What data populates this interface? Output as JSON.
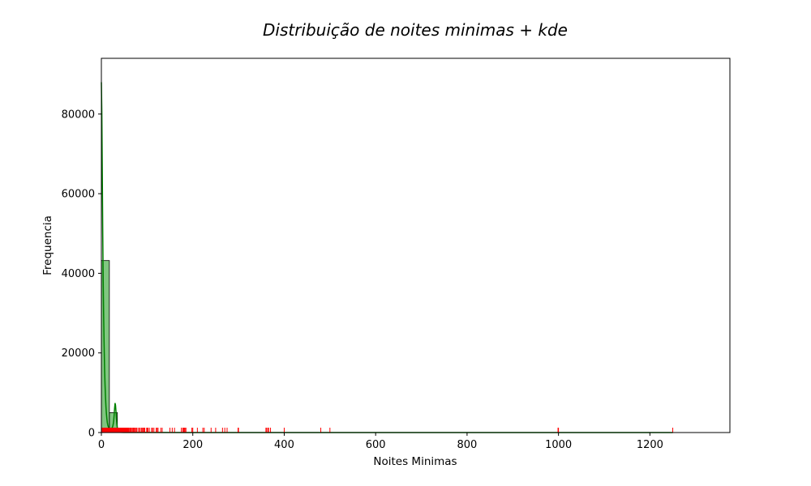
{
  "chart_data": {
    "type": "bar",
    "title": "Distribuição de noites minimas + kde",
    "xlabel": "Noites Minimas",
    "ylabel": "Frequencia",
    "xlim": [
      0,
      1375
    ],
    "ylim": [
      0,
      94000
    ],
    "xticks": [
      0,
      200,
      400,
      600,
      800,
      1000,
      1200
    ],
    "yticks": [
      0,
      20000,
      40000,
      60000,
      80000
    ],
    "histogram": {
      "bin_width": 17.5,
      "bins": [
        {
          "x0": 0,
          "x1": 17.5,
          "count": 43200
        },
        {
          "x0": 17.5,
          "x1": 35,
          "count": 5000
        },
        {
          "x0": 35,
          "x1": 52.5,
          "count": 150
        },
        {
          "x0": 52.5,
          "x1": 70,
          "count": 60
        },
        {
          "x0": 70,
          "x1": 87.5,
          "count": 40
        },
        {
          "x0": 87.5,
          "x1": 105,
          "count": 30
        }
      ],
      "color": "#2ca02c"
    },
    "kde": {
      "color": "#008000",
      "points": [
        [
          0,
          88000
        ],
        [
          1,
          80000
        ],
        [
          2,
          65000
        ],
        [
          3,
          50000
        ],
        [
          4,
          38000
        ],
        [
          5,
          29000
        ],
        [
          6,
          22000
        ],
        [
          7,
          16000
        ],
        [
          8,
          12000
        ],
        [
          9,
          9000
        ],
        [
          10,
          6500
        ],
        [
          11,
          4800
        ],
        [
          12,
          3500
        ],
        [
          13,
          2500
        ],
        [
          14,
          1900
        ],
        [
          15,
          1500
        ],
        [
          16,
          1200
        ],
        [
          17,
          1000
        ],
        [
          18,
          900
        ],
        [
          19,
          850
        ],
        [
          20,
          850
        ],
        [
          21,
          900
        ],
        [
          22,
          1000
        ],
        [
          23,
          1100
        ],
        [
          24,
          1300
        ],
        [
          25,
          1600
        ],
        [
          26,
          2200
        ],
        [
          27,
          3000
        ],
        [
          28,
          4500
        ],
        [
          29,
          6200
        ],
        [
          30,
          7400
        ],
        [
          31,
          6800
        ],
        [
          32,
          5200
        ],
        [
          33,
          3400
        ],
        [
          34,
          2000
        ],
        [
          35,
          1100
        ],
        [
          36,
          600
        ],
        [
          37,
          300
        ],
        [
          38,
          150
        ],
        [
          40,
          60
        ],
        [
          50,
          30
        ],
        [
          100,
          20
        ],
        [
          200,
          10
        ],
        [
          400,
          5
        ],
        [
          600,
          3
        ],
        [
          800,
          2
        ],
        [
          1000,
          2
        ],
        [
          1200,
          1
        ],
        [
          1250,
          1
        ]
      ]
    },
    "rug": {
      "color": "#ff0000",
      "x": [
        1,
        2,
        3,
        4,
        5,
        6,
        7,
        8,
        9,
        10,
        11,
        12,
        13,
        14,
        15,
        16,
        17,
        18,
        19,
        20,
        21,
        22,
        23,
        24,
        25,
        26,
        27,
        28,
        29,
        30,
        31,
        32,
        33,
        34,
        35,
        36,
        37,
        38,
        39,
        40,
        41,
        42,
        43,
        44,
        45,
        46,
        47,
        48,
        49,
        50,
        51,
        52,
        53,
        54,
        55,
        56,
        57,
        58,
        59,
        60,
        62,
        63,
        65,
        67,
        68,
        70,
        72,
        74,
        75,
        77,
        80,
        83,
        85,
        88,
        90,
        91,
        93,
        95,
        99,
        100,
        102,
        105,
        110,
        112,
        115,
        120,
        122,
        124,
        130,
        133,
        150,
        155,
        160,
        175,
        178,
        180,
        182,
        183,
        185,
        198,
        200,
        210,
        222,
        225,
        240,
        250,
        265,
        270,
        275,
        299,
        300,
        360,
        362,
        365,
        366,
        370,
        400,
        480,
        500,
        999,
        1000,
        1250
      ]
    }
  }
}
